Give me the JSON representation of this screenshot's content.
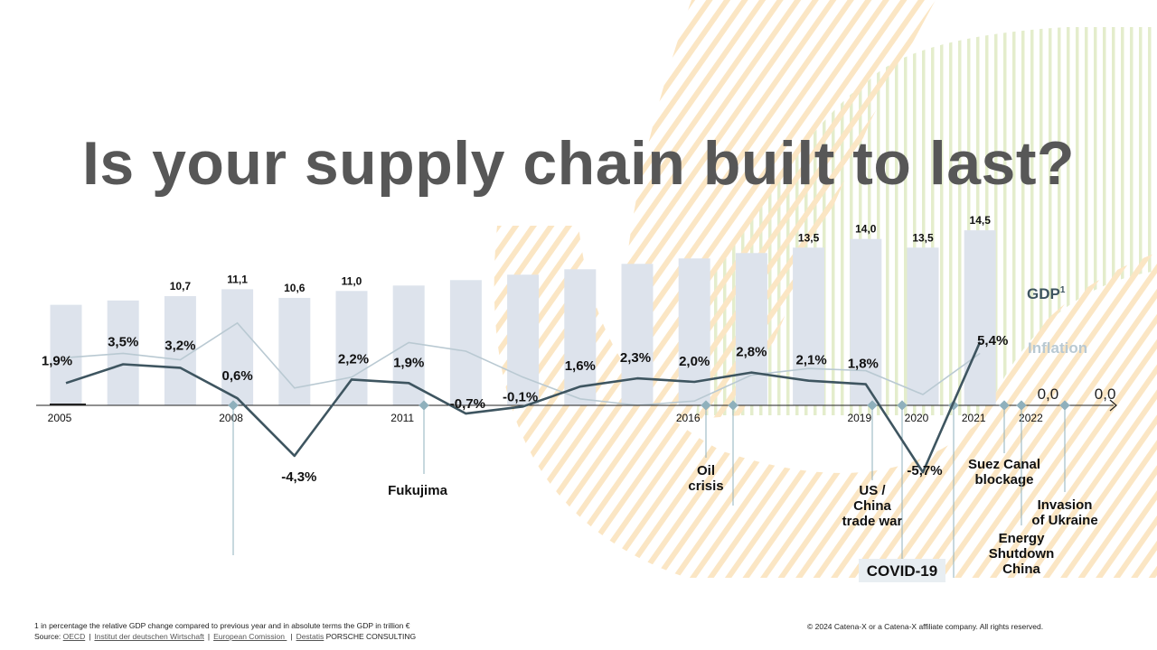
{
  "title": "Is your supply chain built to last?",
  "colors": {
    "gdp_line": "#3e5560",
    "inflation_line": "#b9c9d2",
    "bars": "#dde3ec",
    "stripe_green": "#e7efd3",
    "stripe_orange": "#fbe6c4",
    "marker": "#8fb0bc",
    "title": "#575757"
  },
  "chart_data": {
    "type": "bar+line",
    "legend": {
      "gdp": "GDP",
      "gdp_footnote_marker": "1",
      "inflation": "Inflation"
    },
    "bars_gdp_trillion_eur": [
      {
        "year": 2005,
        "value": null,
        "label": ""
      },
      {
        "year": 2006,
        "value": null,
        "label": ""
      },
      {
        "year": 2007,
        "value": 10.7,
        "label": "10,7"
      },
      {
        "year": 2008,
        "value": 11.1,
        "label": "11,1"
      },
      {
        "year": 2009,
        "value": 10.6,
        "label": "10,6"
      },
      {
        "year": 2010,
        "value": 11.0,
        "label": "11,0"
      },
      {
        "year": 2011,
        "value": null,
        "label": ""
      },
      {
        "year": 2012,
        "value": null,
        "label": ""
      },
      {
        "year": 2013,
        "value": null,
        "label": ""
      },
      {
        "year": 2014,
        "value": null,
        "label": ""
      },
      {
        "year": 2015,
        "value": null,
        "label": ""
      },
      {
        "year": 2016,
        "value": null,
        "label": ""
      },
      {
        "year": 2017,
        "value": null,
        "label": ""
      },
      {
        "year": 2018,
        "value": 13.5,
        "label": "13,5"
      },
      {
        "year": 2019,
        "value": 14.0,
        "label": "14,0"
      },
      {
        "year": 2020,
        "value": 13.5,
        "label": "13,5"
      },
      {
        "year": 2021,
        "value": 14.5,
        "label": "14,5"
      }
    ],
    "gdp_change_percent": [
      {
        "year": 2005,
        "value": 1.9,
        "label": "1,9%"
      },
      {
        "year": 2006,
        "value": 3.5,
        "label": "3,5%"
      },
      {
        "year": 2007,
        "value": 3.2,
        "label": "3,2%"
      },
      {
        "year": 2008,
        "value": 0.6,
        "label": "0,6%"
      },
      {
        "year": 2009,
        "value": -4.3,
        "label": "-4,3%"
      },
      {
        "year": 2010,
        "value": 2.2,
        "label": "2,2%"
      },
      {
        "year": 2011,
        "value": 1.9,
        "label": "1,9%"
      },
      {
        "year": 2012,
        "value": -0.7,
        "label": "-0,7%"
      },
      {
        "year": 2013,
        "value": -0.1,
        "label": "-0,1%"
      },
      {
        "year": 2014,
        "value": 1.6,
        "label": "1,6%"
      },
      {
        "year": 2015,
        "value": 2.3,
        "label": "2,3%"
      },
      {
        "year": 2016,
        "value": 2.0,
        "label": "2,0%"
      },
      {
        "year": 2017,
        "value": 2.8,
        "label": "2,8%"
      },
      {
        "year": 2018,
        "value": 2.1,
        "label": "2,1%"
      },
      {
        "year": 2019,
        "value": 1.8,
        "label": "1,8%"
      },
      {
        "year": 2020,
        "value": -5.7,
        "label": "-5,7%"
      },
      {
        "year": 2021,
        "value": 5.4,
        "label": "5,4%"
      }
    ],
    "inflation_percent": [
      {
        "year": 2005,
        "value": 2.2
      },
      {
        "year": 2006,
        "value": 2.4
      },
      {
        "year": 2007,
        "value": 2.1
      },
      {
        "year": 2008,
        "value": 3.8
      },
      {
        "year": 2009,
        "value": 0.8
      },
      {
        "year": 2010,
        "value": 1.3
      },
      {
        "year": 2011,
        "value": 2.9
      },
      {
        "year": 2012,
        "value": 2.5
      },
      {
        "year": 2013,
        "value": 1.3
      },
      {
        "year": 2014,
        "value": 0.3
      },
      {
        "year": 2015,
        "value": 0.0
      },
      {
        "year": 2016,
        "value": 0.2
      },
      {
        "year": 2017,
        "value": 1.4
      },
      {
        "year": 2018,
        "value": 1.7
      },
      {
        "year": 2019,
        "value": 1.6
      },
      {
        "year": 2020,
        "value": 0.5
      },
      {
        "year": 2021,
        "value": 2.4
      }
    ],
    "future_values": [
      {
        "label": "0,0",
        "year": 2022
      },
      {
        "label": "0,0",
        "year": 2023
      }
    ],
    "x_ticks": [
      {
        "year": 2005,
        "label": "2005"
      },
      {
        "year": 2008,
        "label": "2008"
      },
      {
        "year": 2011,
        "label": "2011"
      },
      {
        "year": 2016,
        "label": "2016"
      },
      {
        "year": 2019,
        "label": "2019"
      },
      {
        "year": 2020,
        "label": "2020"
      },
      {
        "year": 2021,
        "label": "2021"
      },
      {
        "year": 2022,
        "label": "2022"
      }
    ],
    "events": [
      {
        "year": 2008.0,
        "label": ""
      },
      {
        "year": 2011.3,
        "label": "Fukujima"
      },
      {
        "year": 2016.2,
        "label": "Oil crisis"
      },
      {
        "year": 2016.7,
        "label": ""
      },
      {
        "year": 2019.0,
        "label": "US / China trade war"
      },
      {
        "year": 2019.5,
        "label": "COVID-19"
      },
      {
        "year": 2020.4,
        "label": ""
      },
      {
        "year": 2021.3,
        "label": "Suez Canal blockage"
      },
      {
        "year": 2021.6,
        "label": "Energy Shutdown China"
      },
      {
        "year": 2022.35,
        "label": "Invasion of Ukraine"
      }
    ]
  },
  "footnote": {
    "note": "1 in percentage the relative GDP change compared to previous year and in absolute terms the GDP in  trillion €",
    "source_prefix": "Source: ",
    "sources": [
      "OECD",
      "Institut der deutschen Wirtschaft",
      "European Comission ",
      "Destatis"
    ],
    "suffix": " PORSCHE CONSULTING"
  },
  "copyright": "© 2024 Catena-X or a Catena-X affiliate company. All rights reserved."
}
